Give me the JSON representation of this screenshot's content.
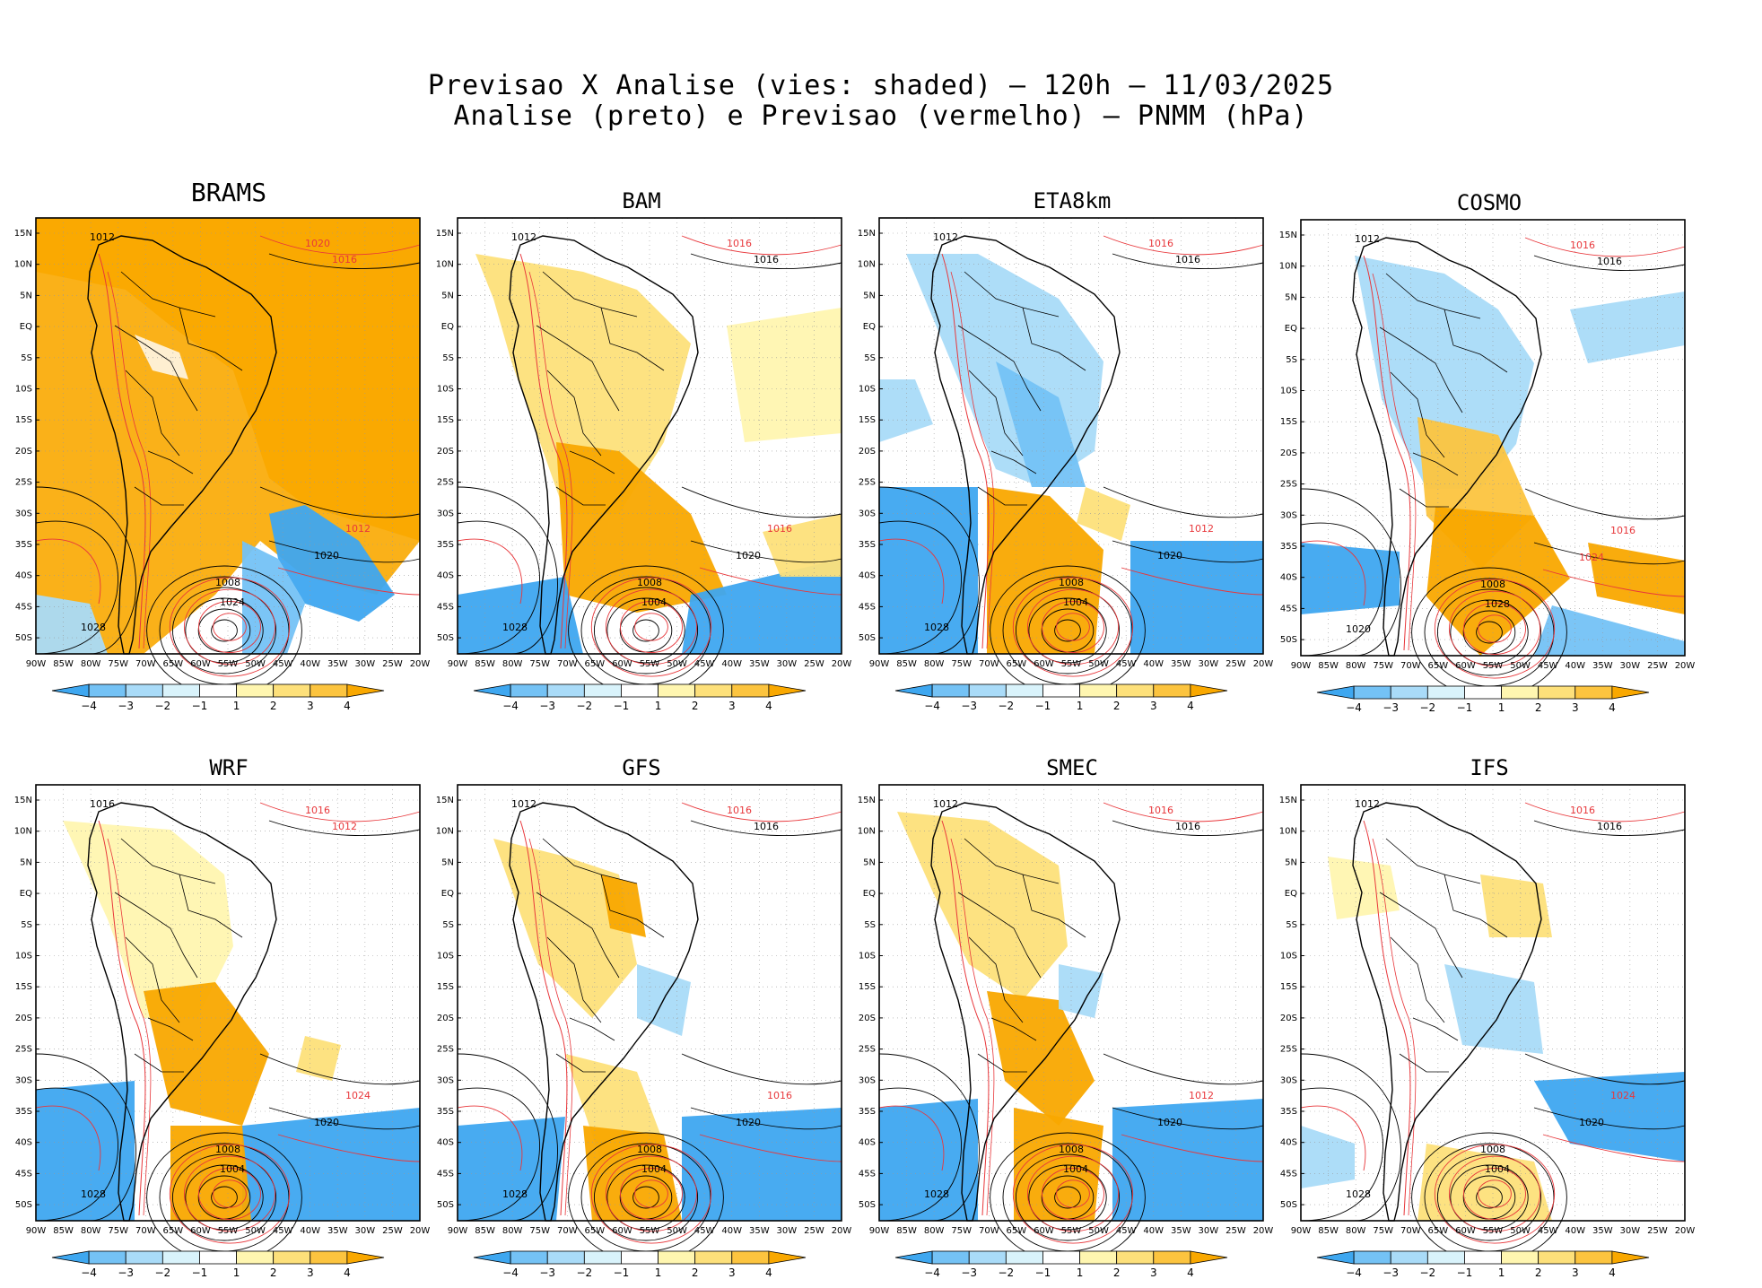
{
  "header": {
    "line1": "Previsao X Analise (vies: shaded) – 120h – 11/03/2025",
    "line2": "Analise (preto) e Previsao (vermelho) – PNMM (hPa)"
  },
  "axes": {
    "lat_labels": [
      "15N",
      "10N",
      "5N",
      "EQ",
      "5S",
      "10S",
      "15S",
      "20S",
      "25S",
      "30S",
      "35S",
      "40S",
      "45S",
      "50S"
    ],
    "lon_labels": [
      "90W",
      "85W",
      "80W",
      "75W",
      "70W",
      "65W",
      "60W",
      "55W",
      "50W",
      "45W",
      "40W",
      "35W",
      "30W",
      "25W",
      "20W"
    ]
  },
  "colorbar": {
    "labels": [
      "−4",
      "−3",
      "−2",
      "−1",
      "1",
      "2",
      "3",
      "4"
    ],
    "colors": [
      "#3ea7f0",
      "#74c2f5",
      "#a9dbf8",
      "#d9f3fb",
      "#ffffff",
      "#fff6b0",
      "#fde07a",
      "#fcc43f",
      "#f9a800"
    ]
  },
  "isobar_colors": {
    "analise": "#000000",
    "previsao": "#e8373b"
  },
  "panels": [
    {
      "name": "BRAMS",
      "labels": [
        {
          "t": "1012",
          "c": "k"
        },
        {
          "t": "1020",
          "c": "r"
        },
        {
          "t": "1016",
          "c": "r"
        },
        {
          "t": "1008",
          "c": "k"
        },
        {
          "t": "1024",
          "c": "k"
        },
        {
          "t": "1028",
          "c": "k"
        },
        {
          "t": "1020",
          "c": "k"
        },
        {
          "t": "1012",
          "c": "r"
        }
      ]
    },
    {
      "name": "BAM",
      "labels": [
        {
          "t": "1012",
          "c": "k"
        },
        {
          "t": "1016",
          "c": "r"
        },
        {
          "t": "1016",
          "c": "k"
        },
        {
          "t": "1008",
          "c": "k"
        },
        {
          "t": "1004",
          "c": "k"
        },
        {
          "t": "1028",
          "c": "k"
        },
        {
          "t": "1020",
          "c": "k"
        },
        {
          "t": "1016",
          "c": "r"
        }
      ]
    },
    {
      "name": "ETA8km",
      "labels": [
        {
          "t": "1012",
          "c": "k"
        },
        {
          "t": "1016",
          "c": "r"
        },
        {
          "t": "1016",
          "c": "k"
        },
        {
          "t": "1008",
          "c": "k"
        },
        {
          "t": "1004",
          "c": "k"
        },
        {
          "t": "1028",
          "c": "k"
        },
        {
          "t": "1020",
          "c": "k"
        },
        {
          "t": "1012",
          "c": "r"
        }
      ]
    },
    {
      "name": "COSMO",
      "labels": [
        {
          "t": "1012",
          "c": "k"
        },
        {
          "t": "1016",
          "c": "r"
        },
        {
          "t": "1016",
          "c": "k"
        },
        {
          "t": "1008",
          "c": "k"
        },
        {
          "t": "1028",
          "c": "k"
        },
        {
          "t": "1020",
          "c": "k"
        },
        {
          "t": "1024",
          "c": "r"
        },
        {
          "t": "1016",
          "c": "r"
        }
      ]
    },
    {
      "name": "WRF",
      "labels": [
        {
          "t": "1016",
          "c": "k"
        },
        {
          "t": "1016",
          "c": "r"
        },
        {
          "t": "1012",
          "c": "r"
        },
        {
          "t": "1008",
          "c": "k"
        },
        {
          "t": "1004",
          "c": "k"
        },
        {
          "t": "1028",
          "c": "k"
        },
        {
          "t": "1020",
          "c": "k"
        },
        {
          "t": "1024",
          "c": "r"
        }
      ]
    },
    {
      "name": "GFS",
      "labels": [
        {
          "t": "1012",
          "c": "k"
        },
        {
          "t": "1016",
          "c": "r"
        },
        {
          "t": "1016",
          "c": "k"
        },
        {
          "t": "1008",
          "c": "k"
        },
        {
          "t": "1004",
          "c": "k"
        },
        {
          "t": "1028",
          "c": "k"
        },
        {
          "t": "1020",
          "c": "k"
        },
        {
          "t": "1016",
          "c": "r"
        }
      ]
    },
    {
      "name": "SMEC",
      "labels": [
        {
          "t": "1012",
          "c": "k"
        },
        {
          "t": "1016",
          "c": "r"
        },
        {
          "t": "1016",
          "c": "k"
        },
        {
          "t": "1008",
          "c": "k"
        },
        {
          "t": "1004",
          "c": "k"
        },
        {
          "t": "1028",
          "c": "k"
        },
        {
          "t": "1020",
          "c": "k"
        },
        {
          "t": "1012",
          "c": "r"
        }
      ]
    },
    {
      "name": "IFS",
      "labels": [
        {
          "t": "1012",
          "c": "k"
        },
        {
          "t": "1016",
          "c": "r"
        },
        {
          "t": "1016",
          "c": "k"
        },
        {
          "t": "1008",
          "c": "k"
        },
        {
          "t": "1004",
          "c": "k"
        },
        {
          "t": "1028",
          "c": "k"
        },
        {
          "t": "1020",
          "c": "k"
        },
        {
          "t": "1024",
          "c": "r"
        }
      ]
    }
  ]
}
